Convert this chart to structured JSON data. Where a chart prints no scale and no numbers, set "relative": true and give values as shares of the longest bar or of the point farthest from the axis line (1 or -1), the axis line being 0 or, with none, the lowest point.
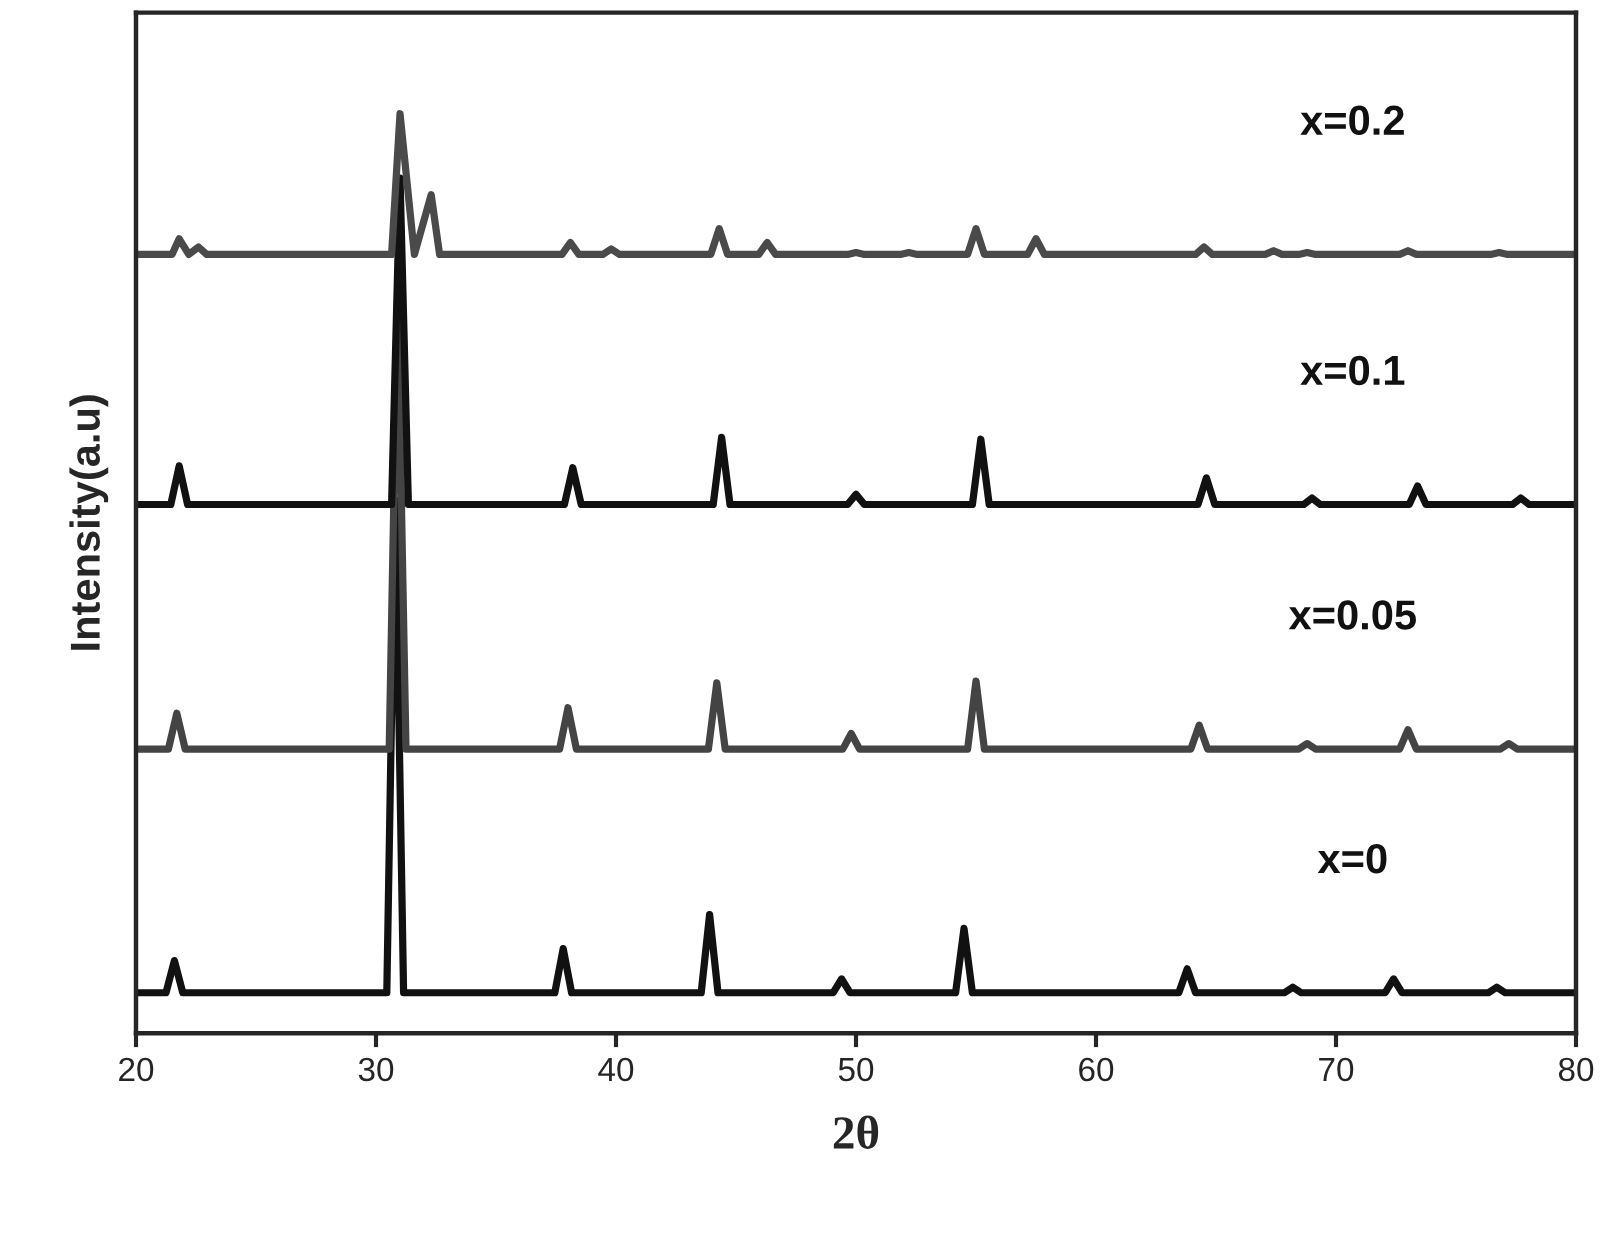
{
  "chart_data": {
    "type": "line",
    "relative": true,
    "xlabel": "2θ",
    "ylabel": "Intensity(a.u)",
    "xlim": [
      20,
      80
    ],
    "xticks": [
      20,
      30,
      40,
      50,
      60,
      70,
      80
    ],
    "legend": false,
    "grid": false,
    "marker": "none",
    "line_style": "solid",
    "series": [
      {
        "name": "x=0",
        "color": "#111111",
        "x": [
          20,
          21.25,
          21.6,
          21.95,
          30.45,
          30.8,
          31.15,
          37.45,
          37.8,
          38.15,
          43.55,
          43.9,
          44.25,
          49.05,
          49.4,
          49.75,
          54.15,
          54.5,
          54.85,
          63.45,
          63.8,
          64.15,
          67.85,
          68.2,
          68.55,
          72.05,
          72.4,
          72.75,
          76.35,
          76.7,
          77.05,
          80
        ],
        "values": [
          0.044,
          0.044,
          0.079,
          0.044,
          0.044,
          0.58,
          0.044,
          0.044,
          0.092,
          0.044,
          0.044,
          0.129,
          0.044,
          0.044,
          0.059,
          0.044,
          0.044,
          0.114,
          0.044,
          0.044,
          0.07,
          0.044,
          0.044,
          0.05,
          0.044,
          0.044,
          0.059,
          0.044,
          0.044,
          0.05,
          0.044,
          0.044
        ]
      },
      {
        "name": "x=0.05",
        "color": "#444444",
        "x": [
          20,
          21.35,
          21.7,
          22.05,
          30.55,
          30.9,
          31.25,
          37.65,
          38.0,
          38.35,
          43.85,
          44.2,
          44.55,
          49.45,
          49.8,
          50.15,
          54.65,
          55.0,
          55.35,
          63.95,
          64.3,
          64.65,
          68.45,
          68.8,
          69.15,
          72.65,
          73.0,
          73.35,
          76.85,
          77.2,
          77.55,
          80
        ],
        "values": [
          0.309,
          0.309,
          0.348,
          0.309,
          0.309,
          0.799,
          0.309,
          0.309,
          0.354,
          0.309,
          0.309,
          0.381,
          0.309,
          0.309,
          0.326,
          0.309,
          0.309,
          0.383,
          0.309,
          0.309,
          0.335,
          0.309,
          0.309,
          0.315,
          0.309,
          0.309,
          0.33,
          0.309,
          0.309,
          0.315,
          0.309,
          0.309
        ]
      },
      {
        "name": "x=0.1",
        "color": "#111111",
        "x": [
          20,
          21.45,
          21.8,
          22.15,
          30.65,
          31.0,
          31.35,
          37.85,
          38.2,
          38.55,
          44.05,
          44.4,
          44.75,
          49.65,
          50.0,
          50.35,
          54.85,
          55.2,
          55.55,
          64.25,
          64.6,
          64.95,
          68.65,
          69.0,
          69.35,
          73.05,
          73.4,
          73.75,
          77.35,
          77.7,
          78.05,
          80
        ],
        "values": [
          0.575,
          0.575,
          0.617,
          0.575,
          0.575,
          0.93,
          0.575,
          0.575,
          0.615,
          0.575,
          0.575,
          0.648,
          0.575,
          0.575,
          0.586,
          0.575,
          0.575,
          0.646,
          0.575,
          0.575,
          0.604,
          0.575,
          0.575,
          0.582,
          0.575,
          0.575,
          0.595,
          0.575,
          0.575,
          0.582,
          0.575,
          0.575
        ]
      },
      {
        "name": "x=0.2",
        "color": "#4a4a4a",
        "x": [
          20,
          21.5,
          21.8,
          22.2,
          22.6,
          22.95,
          30.65,
          31.0,
          31.6,
          32.3,
          32.65,
          37.75,
          38.1,
          38.45,
          39.45,
          39.8,
          40.15,
          43.95,
          44.3,
          44.65,
          45.95,
          46.3,
          46.65,
          49.65,
          50.0,
          50.35,
          51.85,
          52.2,
          52.55,
          54.65,
          55.0,
          55.35,
          57.15,
          57.5,
          57.85,
          64.15,
          64.5,
          64.85,
          67.05,
          67.4,
          67.75,
          68.45,
          68.8,
          69.15,
          72.65,
          73.0,
          73.35,
          76.45,
          76.8,
          77.15,
          80
        ],
        "values": [
          0.847,
          0.847,
          0.864,
          0.847,
          0.855,
          0.847,
          0.847,
          1,
          0.847,
          0.912,
          0.847,
          0.847,
          0.86,
          0.847,
          0.847,
          0.853,
          0.847,
          0.847,
          0.875,
          0.847,
          0.847,
          0.86,
          0.847,
          0.847,
          0.849,
          0.847,
          0.847,
          0.849,
          0.847,
          0.847,
          0.875,
          0.847,
          0.847,
          0.864,
          0.847,
          0.847,
          0.855,
          0.847,
          0.847,
          0.851,
          0.847,
          0.847,
          0.849,
          0.847,
          0.847,
          0.851,
          0.847,
          0.847,
          0.849,
          0.847,
          0.847
        ]
      }
    ]
  }
}
